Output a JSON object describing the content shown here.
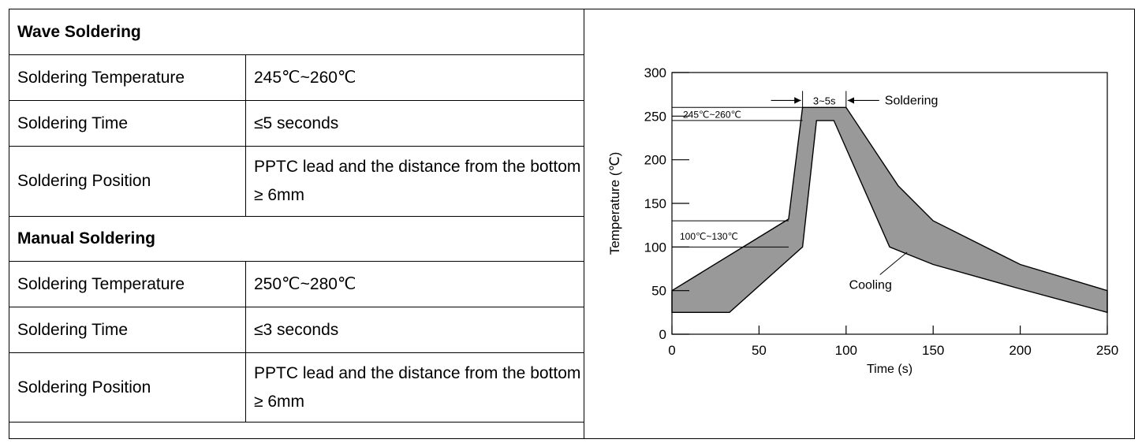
{
  "table": {
    "sections": [
      {
        "title": "Wave Soldering",
        "rows": [
          {
            "label": "Soldering Temperature",
            "value": "245℃~260℃"
          },
          {
            "label": "Soldering Time",
            "value": "≤5 seconds"
          },
          {
            "label": "Soldering Position",
            "value": "PPTC lead and the distance from the bottom ≥ 6mm"
          }
        ]
      },
      {
        "title": "Manual Soldering",
        "rows": [
          {
            "label": "Soldering Temperature",
            "value": "250℃~280℃"
          },
          {
            "label": "Soldering Time",
            "value": "≤3 seconds"
          },
          {
            "label": "Soldering Position",
            "value": "PPTC lead and the distance from the bottom ≥ 6mm"
          }
        ]
      }
    ]
  },
  "chart_data": {
    "type": "area",
    "title": "",
    "xlabel": "Time (s)",
    "ylabel": "Temperature (℃)",
    "xlim": [
      0,
      250
    ],
    "ylim": [
      0,
      300
    ],
    "xticks": [
      0,
      50,
      100,
      150,
      200,
      250
    ],
    "yticks": [
      0,
      50,
      100,
      150,
      200,
      250,
      300
    ],
    "grid": false,
    "fill_color": "#999999",
    "series": [
      {
        "name": "",
        "upper": [
          [
            0,
            50
          ],
          [
            67,
            132
          ],
          [
            75,
            260
          ],
          [
            100,
            260
          ],
          [
            130,
            170
          ],
          [
            150,
            130
          ],
          [
            200,
            80
          ],
          [
            250,
            50
          ]
        ],
        "lower": [
          [
            0,
            25
          ],
          [
            33,
            25
          ],
          [
            75,
            100
          ],
          [
            83,
            245
          ],
          [
            93,
            245
          ],
          [
            125,
            100
          ],
          [
            150,
            80
          ],
          [
            200,
            52
          ],
          [
            250,
            25
          ]
        ]
      }
    ],
    "annotations": {
      "soldering_window": {
        "label": "3~5s",
        "x_start": 75,
        "x_end": 100,
        "y": 268
      },
      "soldering": {
        "label": "Soldering",
        "x": 100,
        "y": 268
      },
      "peak_range": {
        "label": "245℃~260℃",
        "y_low": 245,
        "y_high": 260,
        "x_end": 75
      },
      "preheat_range": {
        "label": "100℃~130℃",
        "y_low": 100,
        "y_high": 130,
        "x_end": 67
      },
      "cooling": {
        "label": "Cooling",
        "x": 114,
        "y": 52,
        "target_x": 135,
        "target_y": 94
      }
    }
  }
}
